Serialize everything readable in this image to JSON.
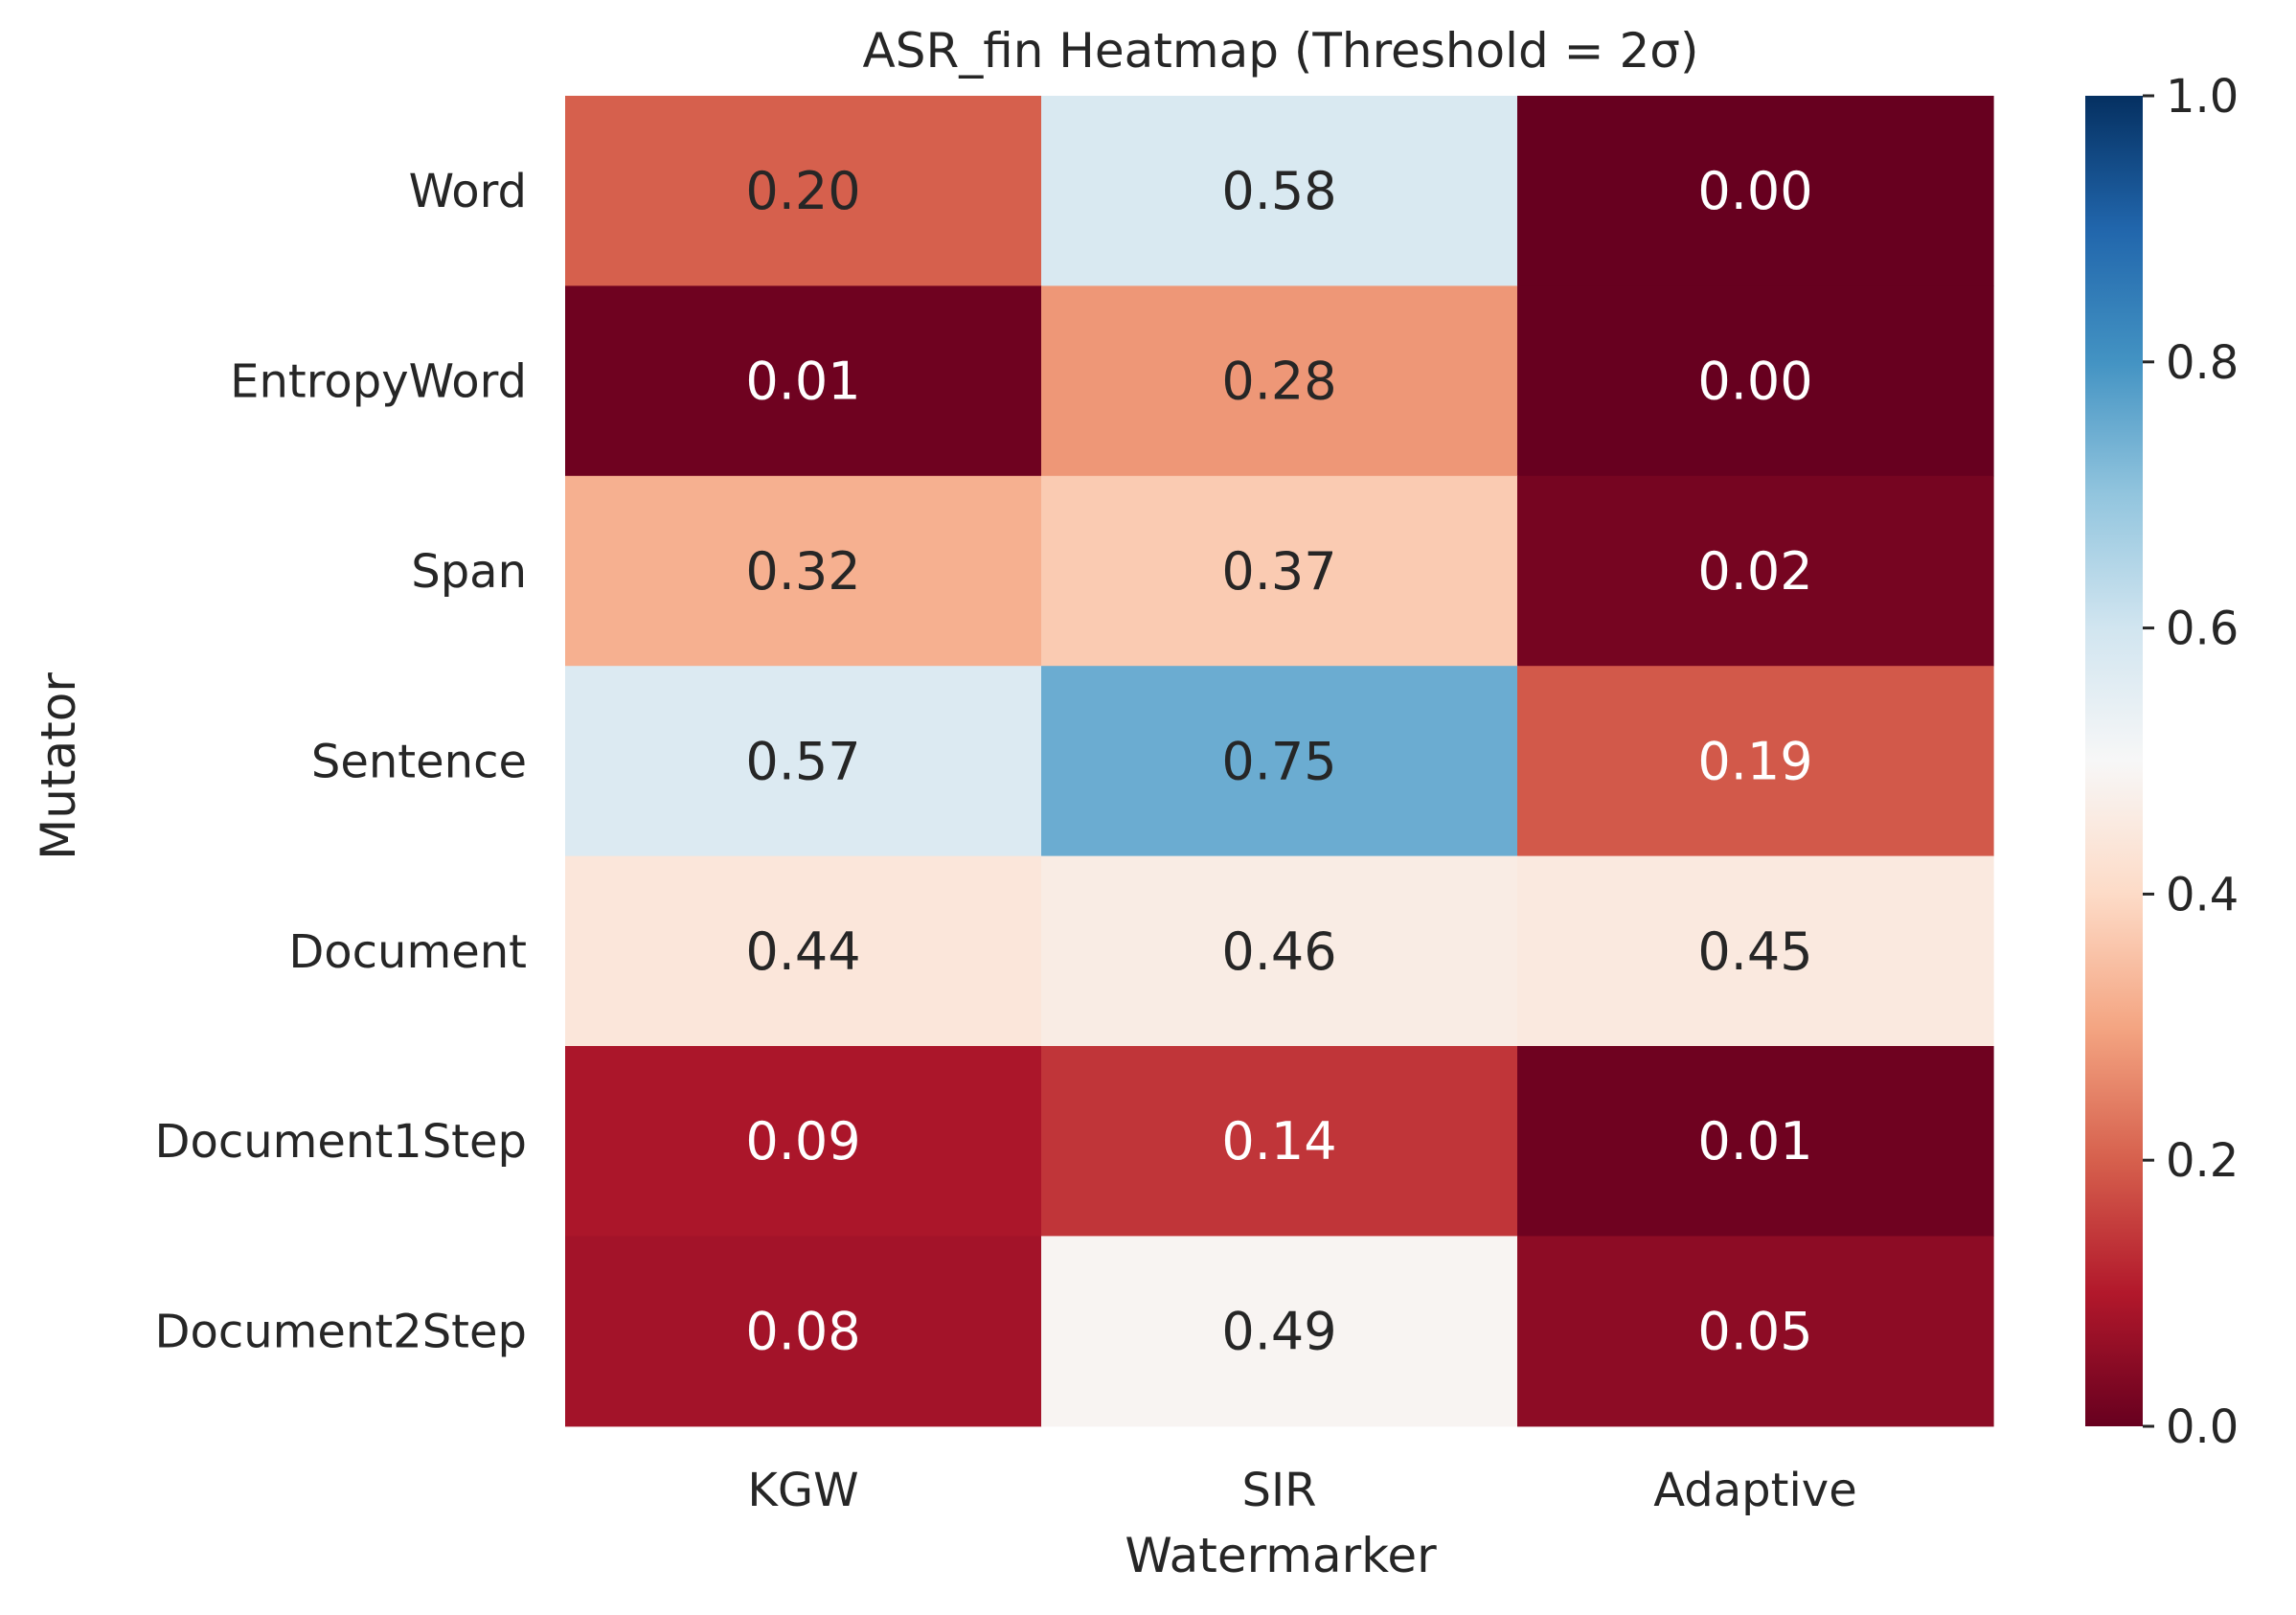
{
  "chart_data": {
    "type": "heatmap",
    "title": "ASR_fin Heatmap (Threshold = 2σ)",
    "xlabel": "Watermarker",
    "ylabel": "Mutator",
    "x_categories": [
      "KGW",
      "SIR",
      "Adaptive"
    ],
    "y_categories": [
      "Word",
      "EntropyWord",
      "Span",
      "Sentence",
      "Document",
      "Document1Step",
      "Document2Step"
    ],
    "values": [
      [
        0.2,
        0.58,
        0.0
      ],
      [
        0.01,
        0.28,
        0.0
      ],
      [
        0.32,
        0.37,
        0.02
      ],
      [
        0.57,
        0.75,
        0.19
      ],
      [
        0.44,
        0.46,
        0.45
      ],
      [
        0.09,
        0.14,
        0.01
      ],
      [
        0.08,
        0.49,
        0.05
      ]
    ],
    "value_labels": [
      [
        "0.20",
        "0.58",
        "0.00"
      ],
      [
        "0.01",
        "0.28",
        "0.00"
      ],
      [
        "0.32",
        "0.37",
        "0.02"
      ],
      [
        "0.57",
        "0.75",
        "0.19"
      ],
      [
        "0.44",
        "0.46",
        "0.45"
      ],
      [
        "0.09",
        "0.14",
        "0.01"
      ],
      [
        "0.08",
        "0.49",
        "0.05"
      ]
    ],
    "colormap": "RdBu",
    "vmin": 0.0,
    "vmax": 1.0,
    "colorbar_ticks": [
      0.0,
      0.2,
      0.4,
      0.6,
      0.8,
      1.0
    ],
    "colorbar_tick_labels": [
      "0.0",
      "0.2",
      "0.4",
      "0.6",
      "0.8",
      "1.0"
    ],
    "colormap_stops": [
      "#67001f",
      "#b2182b",
      "#d6604d",
      "#f4a582",
      "#fddbc7",
      "#f7f7f7",
      "#d1e5f0",
      "#92c5de",
      "#4393c3",
      "#2166ac",
      "#053061"
    ],
    "text_colors": {
      "dark": "#262626",
      "light": "#ffffff"
    },
    "grid": false,
    "legend": "none"
  }
}
